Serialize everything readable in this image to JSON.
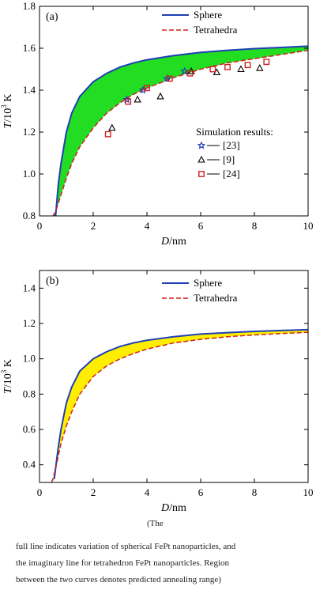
{
  "caption": {
    "line1": "(The",
    "line2": "full line indicates variation of spherical FePt nanoparticles, and",
    "line3": "the imaginary line for tetrahedron FePt nanoparticles. Region",
    "line4": "between the two curves denotes predicted annealing range)"
  },
  "chart_data": [
    {
      "type": "line",
      "panel_label": "(a)",
      "xlabel_italic": "D",
      "xlabel_unit": "/nm",
      "ylabel_italic": "T",
      "ylabel_unit": "/10",
      "ylabel_sup": "3",
      "ylabel_tail": " K",
      "xlim": [
        0,
        10
      ],
      "ylim": [
        0.8,
        1.8
      ],
      "xticks": [
        "0",
        "2",
        "4",
        "6",
        "8",
        "10"
      ],
      "yticks": [
        "0.8",
        "1.0",
        "1.2",
        "1.4",
        "1.6",
        "1.8"
      ],
      "fill_color": "#22dd22",
      "series": [
        {
          "name": "Sphere",
          "color": "#1f3fb5",
          "style": "solid",
          "x": [
            0.6,
            0.7,
            0.8,
            1.0,
            1.2,
            1.5,
            2.0,
            2.5,
            3.0,
            3.5,
            4.0,
            5.0,
            6.0,
            7.0,
            8.0,
            9.0,
            10.0
          ],
          "y": [
            0.8,
            0.95,
            1.05,
            1.2,
            1.29,
            1.37,
            1.44,
            1.48,
            1.51,
            1.53,
            1.545,
            1.565,
            1.58,
            1.59,
            1.598,
            1.604,
            1.61
          ]
        },
        {
          "name": "Tetrahedra",
          "color": "#cc2222",
          "style": "dashed",
          "x": [
            0.5,
            0.6,
            0.7,
            0.8,
            1.0,
            1.2,
            1.5,
            2.0,
            2.5,
            3.0,
            3.5,
            4.0,
            5.0,
            6.0,
            7.0,
            8.0,
            9.0,
            10.0
          ],
          "y": [
            0.8,
            0.82,
            0.86,
            0.9,
            0.98,
            1.05,
            1.13,
            1.22,
            1.29,
            1.34,
            1.38,
            1.41,
            1.46,
            1.5,
            1.53,
            1.55,
            1.57,
            1.59
          ]
        }
      ],
      "legend_position": "top-right",
      "simulation_title": "Simulation results:",
      "simulation": [
        {
          "label": "[23]",
          "marker": "star",
          "color": "#1f3fb5",
          "x": [
            3.25,
            3.85,
            4.75,
            5.4
          ],
          "y": [
            1.355,
            1.4,
            1.455,
            1.49
          ]
        },
        {
          "label": "[9]",
          "marker": "triangle",
          "color": "#000000",
          "x": [
            2.7,
            3.65,
            4.5,
            5.65,
            6.6,
            7.5,
            8.2
          ],
          "y": [
            1.22,
            1.355,
            1.37,
            1.49,
            1.485,
            1.5,
            1.505
          ]
        },
        {
          "label": "[24]",
          "marker": "square",
          "color": "#cc2222",
          "x": [
            2.55,
            3.3,
            4.0,
            4.85,
            5.6,
            6.45,
            7.0,
            7.75,
            8.45
          ],
          "y": [
            1.19,
            1.345,
            1.41,
            1.455,
            1.48,
            1.5,
            1.51,
            1.52,
            1.535
          ]
        }
      ]
    },
    {
      "type": "line",
      "panel_label": "(b)",
      "xlabel_italic": "D",
      "xlabel_unit": "/nm",
      "ylabel_italic": "T",
      "ylabel_unit": "/10",
      "ylabel_sup": "3",
      "ylabel_tail": " K",
      "xlim": [
        0,
        10
      ],
      "ylim": [
        0.3,
        1.5
      ],
      "xticks": [
        "0",
        "2",
        "4",
        "6",
        "8",
        "10"
      ],
      "yticks": [
        "0.4",
        "0.6",
        "0.8",
        "1.0",
        "1.2",
        "1.4"
      ],
      "fill_color": "#ffee00",
      "series": [
        {
          "name": "Sphere",
          "color": "#1f3fb5",
          "style": "solid",
          "x": [
            0.55,
            0.6,
            0.7,
            0.8,
            1.0,
            1.2,
            1.5,
            2.0,
            2.5,
            3.0,
            3.5,
            4.0,
            5.0,
            6.0,
            7.0,
            8.0,
            9.0,
            10.0
          ],
          "y": [
            0.32,
            0.38,
            0.5,
            0.6,
            0.75,
            0.84,
            0.93,
            1.0,
            1.04,
            1.07,
            1.09,
            1.105,
            1.125,
            1.14,
            1.148,
            1.155,
            1.16,
            1.165
          ]
        },
        {
          "name": "Tetrahedra",
          "color": "#cc2222",
          "style": "dashed",
          "x": [
            0.45,
            0.5,
            0.6,
            0.7,
            0.8,
            1.0,
            1.2,
            1.5,
            2.0,
            2.5,
            3.0,
            3.5,
            4.0,
            5.0,
            6.0,
            7.0,
            8.0,
            9.0,
            10.0
          ],
          "y": [
            0.3,
            0.32,
            0.38,
            0.45,
            0.52,
            0.62,
            0.7,
            0.8,
            0.9,
            0.96,
            1.0,
            1.03,
            1.055,
            1.09,
            1.11,
            1.125,
            1.135,
            1.143,
            1.15
          ]
        }
      ],
      "legend_position": "top-right"
    }
  ]
}
